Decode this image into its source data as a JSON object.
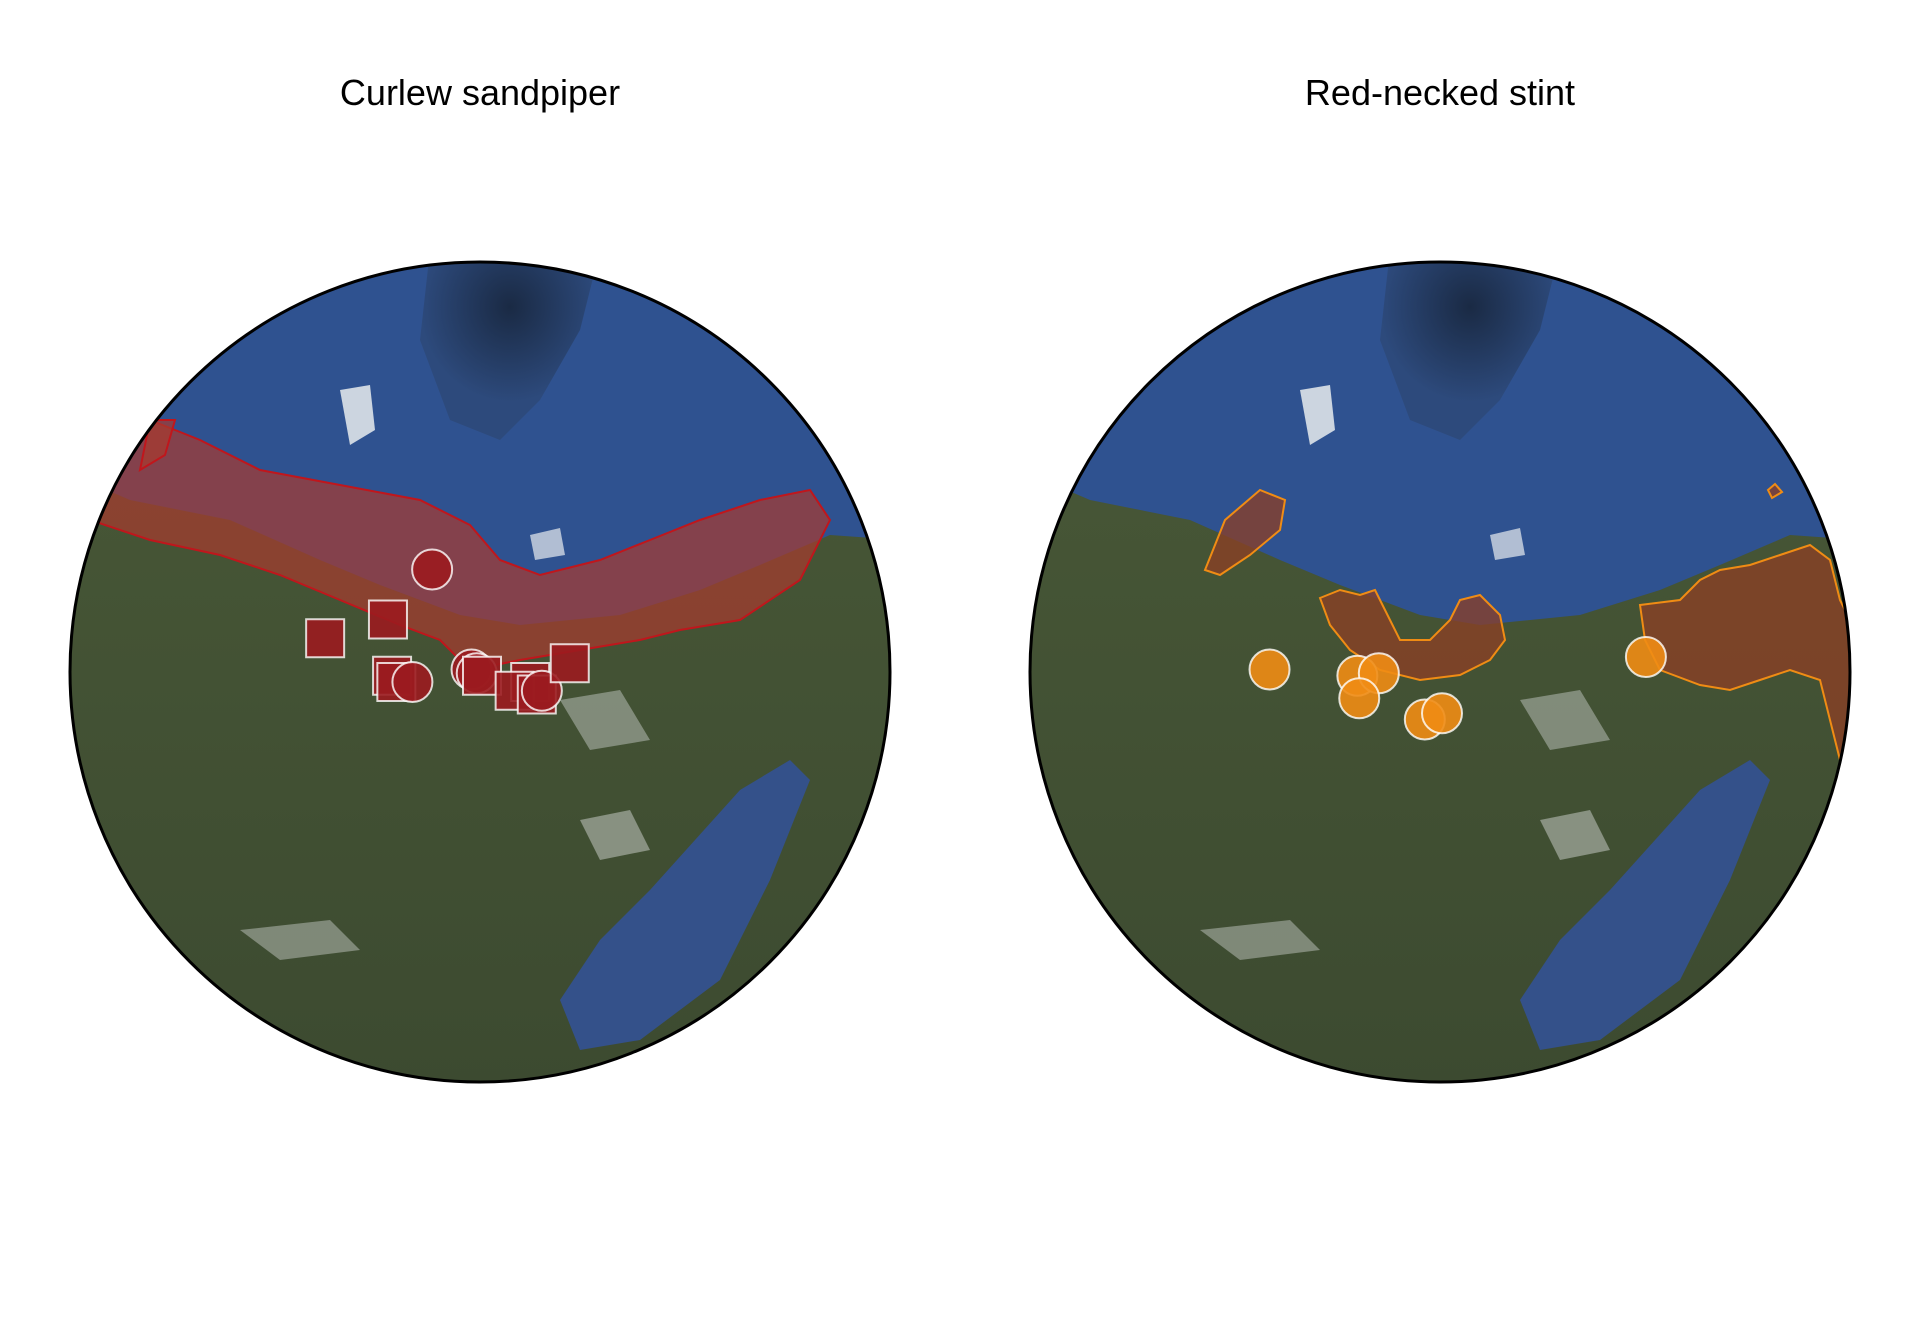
{
  "panels": [
    {
      "title": "Curlew sandpiper",
      "color": "#9b1b1f",
      "fill_color": "#a83a2f",
      "outline_color": "#c0161c",
      "markers": [
        {
          "shape": "circle",
          "lon": 78,
          "lat": 72.5
        },
        {
          "shape": "square",
          "lon": 70,
          "lat": 68.5
        },
        {
          "shape": "square",
          "lon": 58,
          "lat": 67
        },
        {
          "shape": "square",
          "lon": 73,
          "lat": 64
        },
        {
          "shape": "square",
          "lon": 74,
          "lat": 63.5
        },
        {
          "shape": "circle",
          "lon": 77,
          "lat": 63.5
        },
        {
          "shape": "circle",
          "lon": 88,
          "lat": 64.5
        },
        {
          "shape": "circle",
          "lon": 89,
          "lat": 64.2
        },
        {
          "shape": "square",
          "lon": 90,
          "lat": 64
        },
        {
          "shape": "square",
          "lon": 99,
          "lat": 63.5
        },
        {
          "shape": "square",
          "lon": 96,
          "lat": 62.8
        },
        {
          "shape": "square",
          "lon": 100,
          "lat": 62.5
        },
        {
          "shape": "circle",
          "lon": 101,
          "lat": 62.8
        },
        {
          "shape": "square",
          "lon": 107,
          "lat": 65
        }
      ]
    },
    {
      "title": "Red-necked stint",
      "color": "#f08c14",
      "fill_color": "#8e3f24",
      "outline_color": "#f08c14",
      "markers": [
        {
          "shape": "circle",
          "lon": 57,
          "lat": 64.5
        },
        {
          "shape": "circle",
          "lon": 74,
          "lat": 64
        },
        {
          "shape": "circle",
          "lon": 78,
          "lat": 64.2
        },
        {
          "shape": "circle",
          "lon": 75,
          "lat": 62.2
        },
        {
          "shape": "circle",
          "lon": 87,
          "lat": 60.5
        },
        {
          "shape": "circle",
          "lon": 90,
          "lat": 61
        },
        {
          "shape": "circle",
          "lon": 130,
          "lat": 65.5
        }
      ]
    }
  ]
}
